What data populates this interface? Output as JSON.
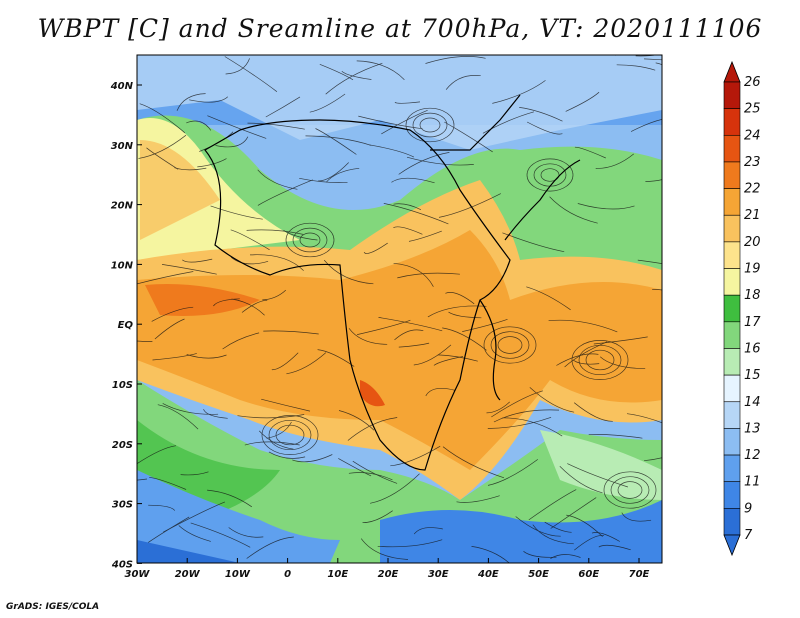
{
  "title": "WBPT [C] and Sreamline at 700hPa, VT: 2020111106",
  "footer": "GrADS: IGES/COLA",
  "map": {
    "lat_labels": [
      "40N",
      "30N",
      "20N",
      "10N",
      "EQ",
      "10S",
      "20S",
      "30S",
      "40S"
    ],
    "lon_labels": [
      "30W",
      "20W",
      "10W",
      "0",
      "10E",
      "20E",
      "30E",
      "40E",
      "50E",
      "60E",
      "70E"
    ]
  },
  "colorbar": {
    "levels": [
      "7",
      "9",
      "11",
      "12",
      "13",
      "14",
      "15",
      "16",
      "17",
      "18",
      "19",
      "20",
      "21",
      "22",
      "23",
      "24",
      "25",
      "26"
    ],
    "colors": [
      "#2b6fd6",
      "#3f86e6",
      "#5fa0ee",
      "#8cbdf2",
      "#b6d6f6",
      "#e6f4ff",
      "#b8ecb4",
      "#82d77c",
      "#3fbe3f",
      "#f5f5a0",
      "#fde38c",
      "#f9c25e",
      "#f5a535",
      "#ef7a1d",
      "#e65512",
      "#d6330c",
      "#b5180a"
    ]
  },
  "colors": {
    "coast": "#000000",
    "streamline": "#111111"
  }
}
